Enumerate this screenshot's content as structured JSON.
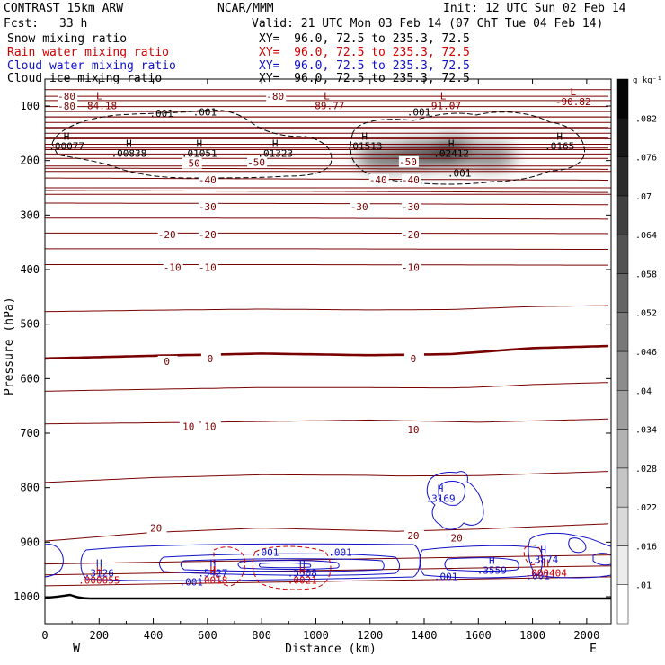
{
  "header": {
    "model": "CONTRAST 15km ARW",
    "org": "NCAR/MMM",
    "init": "Init: 12 UTC Sun 02 Feb 14",
    "fcst_label": "Fcst:",
    "fcst_value": "33 h",
    "valid": "Valid: 21 UTC Mon 03 Feb 14 (07 ChT Tue 04 Feb 14)",
    "fields": [
      {
        "name": "Snow mixing ratio",
        "xy": "XY=  96.0, 72.5 to 235.3, 72.5",
        "color": "#000000"
      },
      {
        "name": "Rain water mixing ratio",
        "xy": "XY=  96.0, 72.5 to 235.3, 72.5",
        "color": "#d00000"
      },
      {
        "name": "Cloud water mixing ratio",
        "xy": "XY=  96.0, 72.5 to 235.3, 72.5",
        "color": "#1010c8"
      },
      {
        "name": "Cloud ice mixing ratio",
        "xy": "XY=  96.0, 72.5 to 235.3, 72.5",
        "color": "#000000"
      }
    ]
  },
  "chart_data": {
    "type": "cross-section contour",
    "xlabel": "Distance (km)",
    "ylabel": "Pressure (hPa)",
    "xlim": [
      0,
      2090
    ],
    "ylim": [
      1050,
      50
    ],
    "x_ticks": [
      0,
      200,
      400,
      600,
      800,
      1000,
      1200,
      1400,
      1600,
      1800,
      2000
    ],
    "y_ticks": [
      100,
      200,
      300,
      400,
      500,
      600,
      700,
      800,
      900,
      1000
    ],
    "x_end_labels": {
      "left": "W",
      "right": "E"
    },
    "colorbar": {
      "unit": "g kg⁻¹",
      "levels": [
        ".01",
        ".016",
        ".022",
        ".028",
        ".034",
        ".04",
        ".046",
        ".052",
        ".058",
        ".064",
        ".07",
        ".076",
        ".082"
      ]
    },
    "temperature_contours": [
      {
        "value": -80,
        "p_at_x": [
          [
            0,
            82
          ],
          [
            1000,
            82
          ],
          [
            2090,
            82
          ]
        ]
      },
      {
        "value": -50,
        "p_at_x": [
          [
            0,
            196
          ],
          [
            1500,
            196
          ],
          [
            2090,
            196
          ]
        ]
      },
      {
        "value": -40,
        "p_at_x": [
          [
            0,
            232
          ],
          [
            1100,
            234
          ],
          [
            2090,
            236
          ]
        ]
      },
      {
        "value": -30,
        "p_at_x": [
          [
            0,
            278
          ],
          [
            1100,
            279
          ],
          [
            2090,
            281
          ]
        ]
      },
      {
        "value": -20,
        "p_at_x": [
          [
            0,
            333
          ],
          [
            1000,
            333
          ],
          [
            2090,
            334
          ]
        ]
      },
      {
        "value": -10,
        "p_at_x": [
          [
            0,
            391
          ],
          [
            1000,
            391
          ],
          [
            2090,
            392
          ]
        ]
      },
      {
        "value": 0,
        "p_at_x": [
          [
            0,
            563
          ],
          [
            400,
            558
          ],
          [
            800,
            554
          ],
          [
            1200,
            557
          ],
          [
            1500,
            555
          ],
          [
            1800,
            544
          ],
          [
            2090,
            540
          ]
        ]
      },
      {
        "value": 10,
        "p_at_x": [
          [
            0,
            683
          ],
          [
            600,
            680
          ],
          [
            1200,
            676
          ],
          [
            1600,
            680
          ],
          [
            2090,
            674
          ]
        ]
      },
      {
        "value": 20,
        "p_at_x": [
          [
            0,
            898
          ],
          [
            400,
            882
          ],
          [
            800,
            874
          ],
          [
            1300,
            880
          ],
          [
            1600,
            876
          ],
          [
            2090,
            866
          ]
        ]
      }
    ],
    "contour_labels": [
      {
        "text": "-80",
        "x": 80,
        "p": 82
      },
      {
        "text": "-80",
        "x": 80,
        "p": 100
      },
      {
        "text": "-80",
        "x": 850,
        "p": 82
      },
      {
        "text": "-50",
        "x": 540,
        "p": 205
      },
      {
        "text": "-50",
        "x": 780,
        "p": 203
      },
      {
        "text": "-50",
        "x": 1340,
        "p": 202
      },
      {
        "text": "-40",
        "x": 600,
        "p": 235
      },
      {
        "text": "-40",
        "x": 1230,
        "p": 235
      },
      {
        "text": "-40",
        "x": 1350,
        "p": 235
      },
      {
        "text": "-30",
        "x": 600,
        "p": 285
      },
      {
        "text": "-30",
        "x": 1160,
        "p": 285
      },
      {
        "text": "-30",
        "x": 1350,
        "p": 285
      },
      {
        "text": "-20",
        "x": 450,
        "p": 336
      },
      {
        "text": "-20",
        "x": 600,
        "p": 336
      },
      {
        "text": "-20",
        "x": 1350,
        "p": 336
      },
      {
        "text": "-10",
        "x": 470,
        "p": 396
      },
      {
        "text": "-10",
        "x": 600,
        "p": 396
      },
      {
        "text": "-10",
        "x": 1350,
        "p": 396
      },
      {
        "text": "0",
        "x": 450,
        "p": 568
      },
      {
        "text": "0",
        "x": 610,
        "p": 563
      },
      {
        "text": "0",
        "x": 1360,
        "p": 563
      },
      {
        "text": "10",
        "x": 530,
        "p": 688
      },
      {
        "text": "10",
        "x": 610,
        "p": 688
      },
      {
        "text": "10",
        "x": 1360,
        "p": 693
      },
      {
        "text": "20",
        "x": 410,
        "p": 874
      },
      {
        "text": "20",
        "x": 1360,
        "p": 888
      },
      {
        "text": "20",
        "x": 1520,
        "p": 892
      }
    ],
    "extrema": [
      {
        "kind": "L",
        "value": "-84.18",
        "x": 200,
        "p": 88,
        "color": "#8b0000"
      },
      {
        "kind": "L",
        "value": "-89.77",
        "x": 1040,
        "p": 88,
        "color": "#8b0000"
      },
      {
        "kind": "L",
        "value": "-91.07",
        "x": 1470,
        "p": 88,
        "color": "#8b0000"
      },
      {
        "kind": "L",
        "value": "-90.82",
        "x": 1950,
        "p": 80,
        "color": "#8b0000"
      },
      {
        "kind": "H",
        "value": ".00077",
        "x": 80,
        "p": 162,
        "color": "#000000"
      },
      {
        "kind": "H",
        "value": ".00838",
        "x": 310,
        "p": 175,
        "color": "#000000"
      },
      {
        "kind": "H",
        "value": ".01051",
        "x": 570,
        "p": 175,
        "color": "#000000"
      },
      {
        "kind": "H",
        "value": ".01323",
        "x": 850,
        "p": 175,
        "color": "#000000"
      },
      {
        "kind": "H",
        "value": ".01513",
        "x": 1180,
        "p": 162,
        "color": "#000000"
      },
      {
        "kind": "H",
        "value": ".02412",
        "x": 1500,
        "p": 175,
        "color": "#000000"
      },
      {
        "kind": "H",
        "value": ".0165",
        "x": 1900,
        "p": 162,
        "color": "#000000"
      },
      {
        "kind": "H",
        "value": ".3169",
        "x": 1460,
        "p": 808,
        "color": "#1010c8"
      },
      {
        "kind": "H",
        "value": ".3126",
        "x": 200,
        "p": 945,
        "color": "#1010c8"
      },
      {
        "kind": "H",
        "value": ".5427",
        "x": 620,
        "p": 945,
        "color": "#1010c8"
      },
      {
        "kind": "H",
        "value": ".5508",
        "x": 950,
        "p": 945,
        "color": "#1010c8"
      },
      {
        "kind": "H",
        "value": ".3559",
        "x": 1650,
        "p": 940,
        "color": "#1010c8"
      },
      {
        "kind": "H",
        "value": ".3874",
        "x": 1840,
        "p": 920,
        "color": "#1010c8"
      },
      {
        "kind": "H",
        "value": ".000055",
        "x": 200,
        "p": 958,
        "color": "#d00000"
      },
      {
        "kind": "H",
        "value": ".0018",
        "x": 620,
        "p": 958,
        "color": "#d00000"
      },
      {
        "kind": "H",
        "value": ".0021",
        "x": 950,
        "p": 958,
        "color": "#d00000"
      },
      {
        "kind": "H",
        "value": ".000404",
        "x": 1850,
        "p": 945,
        "color": "#d00000"
      }
    ],
    "minor_labels": [
      {
        "text": ".001",
        "x": 430,
        "p": 113,
        "color": "#000000"
      },
      {
        "text": ".001",
        "x": 590,
        "p": 111,
        "color": "#000000"
      },
      {
        "text": ".001",
        "x": 1380,
        "p": 111,
        "color": "#000000"
      },
      {
        "text": ".001",
        "x": 1530,
        "p": 223,
        "color": "#000000"
      },
      {
        "text": ".001",
        "x": 820,
        "p": 918,
        "color": "#1010c8"
      },
      {
        "text": ".001",
        "x": 1090,
        "p": 918,
        "color": "#1010c8"
      },
      {
        "text": ".001",
        "x": 540,
        "p": 973,
        "color": "#1010c8"
      },
      {
        "text": ".001",
        "x": 1480,
        "p": 963,
        "color": "#1010c8"
      },
      {
        "text": ".001",
        "x": 1820,
        "p": 961,
        "color": "#1010c8"
      }
    ],
    "snow_maxima": [
      {
        "x": 1250,
        "p": 195,
        "intensity": 0.55
      },
      {
        "x": 1380,
        "p": 190,
        "intensity": 0.75
      },
      {
        "x": 1510,
        "p": 185,
        "intensity": 1.0
      },
      {
        "x": 1640,
        "p": 192,
        "intensity": 0.45
      }
    ]
  }
}
